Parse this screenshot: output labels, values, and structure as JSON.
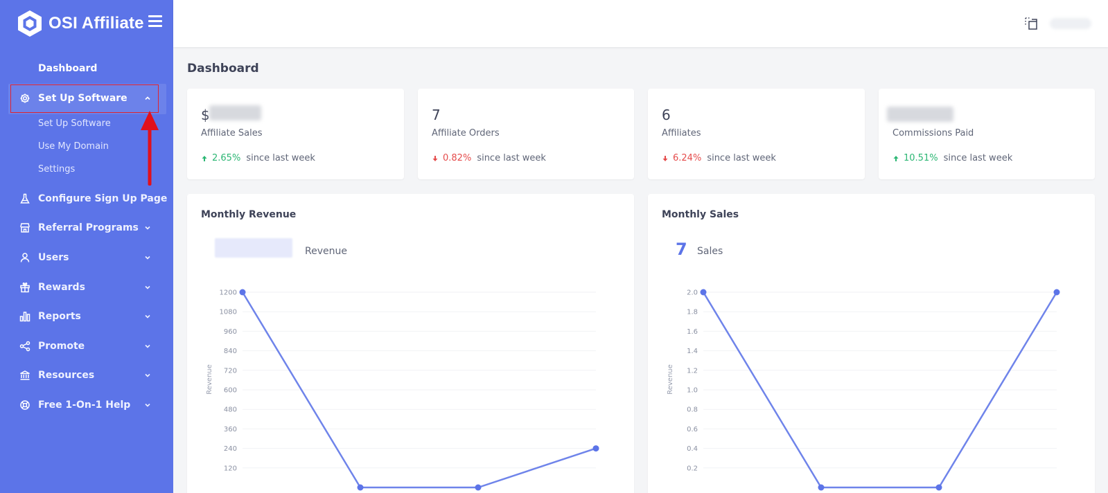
{
  "brand": {
    "name": "OSI Affiliate"
  },
  "sidebar": {
    "dashboard": "Dashboard",
    "setup": {
      "label": "Set Up Software",
      "sub": [
        "Set Up Software",
        "Use My Domain",
        "Settings"
      ]
    },
    "items": [
      {
        "label": "Configure Sign Up Page",
        "icon": "flask-icon"
      },
      {
        "label": "Referral Programs",
        "icon": "store-icon"
      },
      {
        "label": "Users",
        "icon": "user-icon"
      },
      {
        "label": "Rewards",
        "icon": "gift-icon"
      },
      {
        "label": "Reports",
        "icon": "bar-chart-icon"
      },
      {
        "label": "Promote",
        "icon": "share-icon"
      },
      {
        "label": "Resources",
        "icon": "bank-icon"
      },
      {
        "label": "Free 1-On-1 Help",
        "icon": "life-ring-icon"
      }
    ]
  },
  "main": {
    "title": "Dashboard",
    "stats": [
      {
        "value": "$",
        "label": "Affiliate Sales",
        "trend": "2.65%",
        "direction": "up",
        "suffix": "since last week"
      },
      {
        "value": "7",
        "label": "Affiliate Orders",
        "trend": "0.82%",
        "direction": "down",
        "suffix": "since last week"
      },
      {
        "value": "6",
        "label": "Affiliates",
        "trend": "6.24%",
        "direction": "down",
        "suffix": "since last week"
      },
      {
        "value": "",
        "label": "Commissions Paid",
        "trend": "10.51%",
        "direction": "up",
        "suffix": "since last week"
      }
    ]
  },
  "colors": {
    "sidebar": "#5c74e8",
    "line": "#6f84ea",
    "point": "#5c74e8",
    "up": "#2bb673",
    "down": "#e54b4b"
  },
  "chart_data": [
    {
      "type": "line",
      "title": "Monthly Revenue",
      "legend": "Revenue",
      "ylabel": "Revenue",
      "ylim": [
        0,
        1200
      ],
      "yticks": [
        "1200",
        "1080",
        "960",
        "840",
        "720",
        "600",
        "480",
        "360",
        "240",
        "120"
      ],
      "x": [
        0,
        1,
        2,
        3
      ],
      "values": [
        1200,
        0,
        0,
        240
      ]
    },
    {
      "type": "line",
      "title": "Monthly Sales",
      "legend": "Sales",
      "legend_value": "7",
      "ylabel": "Revenue",
      "ylim": [
        0,
        2.0
      ],
      "yticks": [
        "2.0",
        "1.8",
        "1.6",
        "1.4",
        "1.2",
        "1.0",
        "0.8",
        "0.6",
        "0.4",
        "0.2"
      ],
      "x": [
        0,
        1,
        2,
        3
      ],
      "values": [
        2.0,
        0,
        0,
        2.0
      ]
    }
  ]
}
